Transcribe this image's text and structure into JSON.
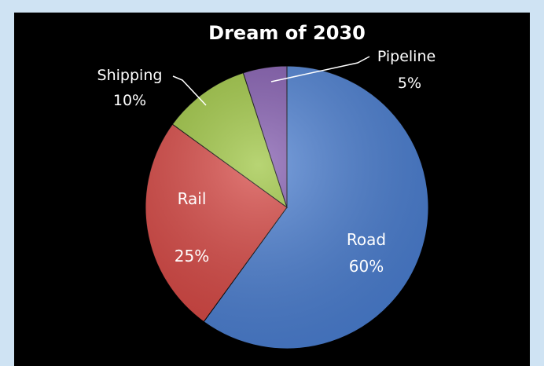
{
  "colors": {
    "background": "#cfe3f3",
    "plot_background": "#000000",
    "text": "#ffffff"
  },
  "chart_data": {
    "type": "pie",
    "title": "Dream of 2030",
    "categories": [
      "Road",
      "Rail",
      "Shipping",
      "Pipeline"
    ],
    "values": [
      60,
      25,
      10,
      5
    ],
    "value_labels": [
      "60%",
      "25%",
      "10%",
      "5%"
    ],
    "colors": [
      "#4a7ed1",
      "#d64541",
      "#9cc43e",
      "#8058ad"
    ],
    "start": "12 o'clock, clockwise",
    "legend": "none (labels on slices)"
  }
}
